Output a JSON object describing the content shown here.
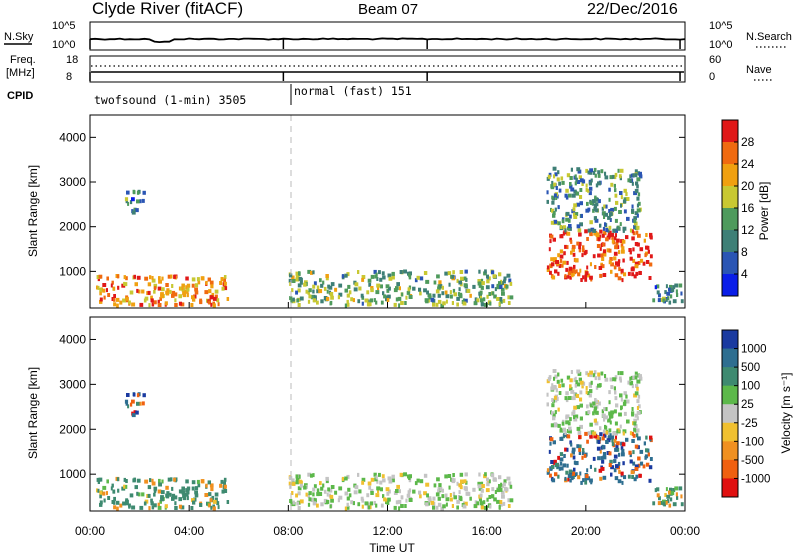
{
  "header": {
    "title": "Clyde River (fitACF)",
    "beam": "Beam 07",
    "date": "22/Dec/2016"
  },
  "nsky": {
    "label": "N.Sky",
    "ticks": [
      "10^5",
      "10^0"
    ],
    "right_label": "N.Search",
    "right_ticks": [
      "10^5",
      "10^0"
    ]
  },
  "freq": {
    "label_line1": "Freq.",
    "label_line2": "[MHz]",
    "ticks": [
      "18",
      "8"
    ],
    "right_label": "Nave",
    "right_ticks": [
      "60",
      "0"
    ]
  },
  "cpid": {
    "label": "CPID",
    "segments": [
      {
        "name": "twofsound (1-min) 3505"
      },
      {
        "name": "normal (fast) 151"
      }
    ]
  },
  "panels": {
    "ylabel": "Slant Range [km]",
    "yticks": [
      "4000",
      "3000",
      "2000",
      "1000"
    ],
    "xlabel": "Time UT",
    "xticks": [
      "00:00",
      "04:00",
      "08:00",
      "12:00",
      "16:00",
      "20:00",
      "00:00"
    ]
  },
  "power_scale": {
    "label": "Power [dB]",
    "ticks": [
      "28",
      "24",
      "20",
      "16",
      "12",
      "8",
      "4"
    ],
    "colors": [
      "#0a1ee8",
      "#2a55b4",
      "#3e7f76",
      "#4e9a5c",
      "#c8c832",
      "#f0a010",
      "#f06a10",
      "#e01818"
    ]
  },
  "velocity_scale": {
    "label": "Velocity [m s⁻¹]",
    "ticks": [
      "1000",
      "500",
      "100",
      "25",
      "-25",
      "-100",
      "-500",
      "-1000"
    ],
    "colors": [
      "#1a3aa0",
      "#2e6e90",
      "#3e8a70",
      "#5cb84a",
      "#c4c4c4",
      "#f0c030",
      "#f09020",
      "#f06010",
      "#e01010"
    ]
  },
  "chart_data": {
    "type": "heatmap",
    "x_unit": "hours UT",
    "xlim": [
      0,
      24
    ],
    "ylim": [
      180,
      4500
    ],
    "mode_change_hour": 7.8,
    "scatter_regions": [
      {
        "t0": 0.2,
        "t1": 5.6,
        "r0": 230,
        "r1": 900,
        "power": 24,
        "velocity": 100
      },
      {
        "t0": 1.4,
        "t1": 2.2,
        "r0": 2300,
        "r1": 2800,
        "power": 10,
        "velocity": 500
      },
      {
        "t0": 8.0,
        "t1": 17.0,
        "r0": 230,
        "r1": 1000,
        "power": 14,
        "velocity": 25
      },
      {
        "t0": 18.4,
        "t1": 22.6,
        "r0": 800,
        "r1": 1900,
        "power": 28,
        "velocity": 500
      },
      {
        "t0": 18.4,
        "t1": 22.2,
        "r0": 1900,
        "r1": 3300,
        "power": 12,
        "velocity": 25
      },
      {
        "t0": 22.6,
        "t1": 24.0,
        "r0": 230,
        "r1": 700,
        "power": 10,
        "velocity": 100
      }
    ]
  }
}
